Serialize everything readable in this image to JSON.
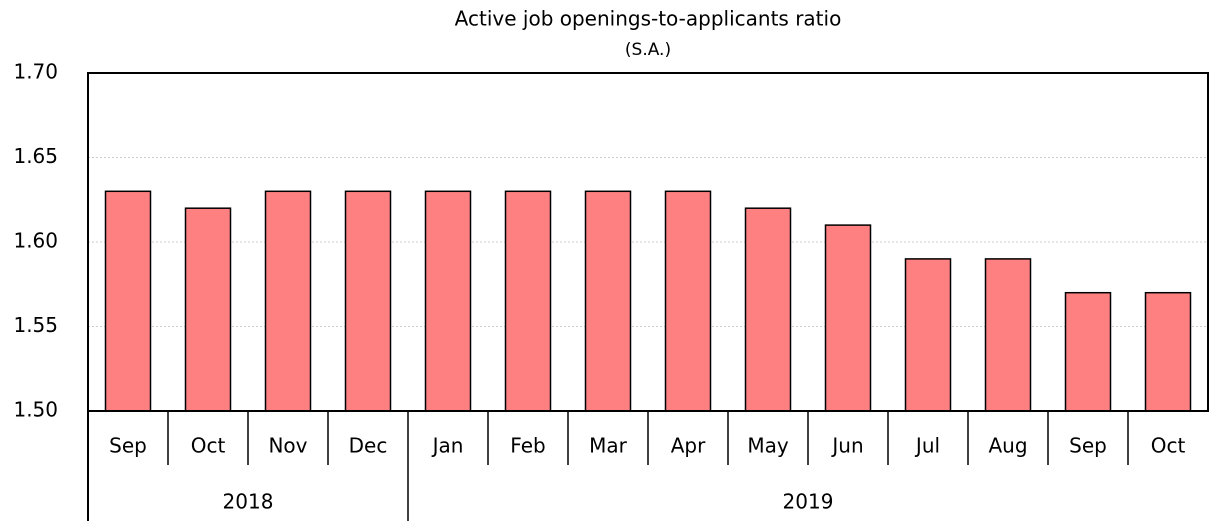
{
  "chart_data": {
    "type": "bar",
    "title": "Active job openings-to-applicants ratio",
    "subtitle": "(S.A.)",
    "color": "#ff8080",
    "grid": true,
    "ylim": [
      1.5,
      1.7
    ],
    "yticks": [
      {
        "value": 1.5,
        "label": "1.50"
      },
      {
        "value": 1.55,
        "label": "1.55"
      },
      {
        "value": 1.6,
        "label": "1.60"
      },
      {
        "value": 1.65,
        "label": "1.65"
      },
      {
        "value": 1.7,
        "label": "1.70"
      }
    ],
    "groups": [
      {
        "label": "2018",
        "categories": [
          "Sep",
          "Oct",
          "Nov",
          "Dec"
        ],
        "values": [
          1.63,
          1.62,
          1.63,
          1.63
        ]
      },
      {
        "label": "2019",
        "categories": [
          "Jan",
          "Feb",
          "Mar",
          "Apr",
          "May",
          "Jun",
          "Jul",
          "Aug",
          "Sep",
          "Oct"
        ],
        "values": [
          1.63,
          1.63,
          1.63,
          1.63,
          1.62,
          1.61,
          1.59,
          1.59,
          1.57,
          1.57
        ]
      }
    ]
  }
}
